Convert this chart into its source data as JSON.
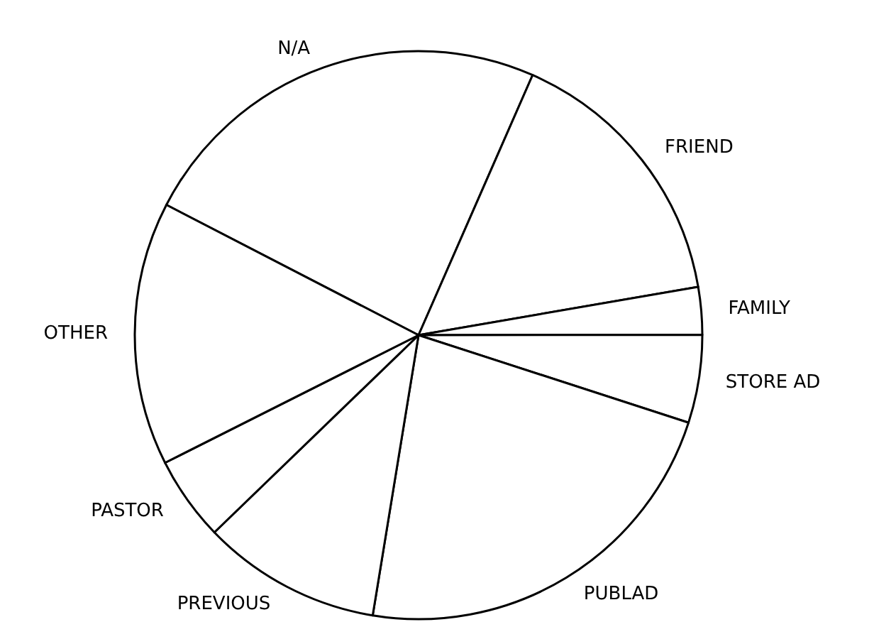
{
  "chart_data": {
    "type": "pie",
    "categories": [
      "N/A",
      "FRIEND",
      "FAMILY",
      "STORE AD",
      "PUBLAD",
      "PREVIOUS",
      "PASTOR",
      "OTHER"
    ],
    "values": [
      24.0,
      15.7,
      2.7,
      5.0,
      22.6,
      10.2,
      4.8,
      15.0
    ],
    "colors": [
      "#ffffff",
      "#ffffff",
      "#ffffff",
      "#ffffff",
      "#ffffff",
      "#ffffff",
      "#ffffff",
      "#ffffff"
    ]
  }
}
